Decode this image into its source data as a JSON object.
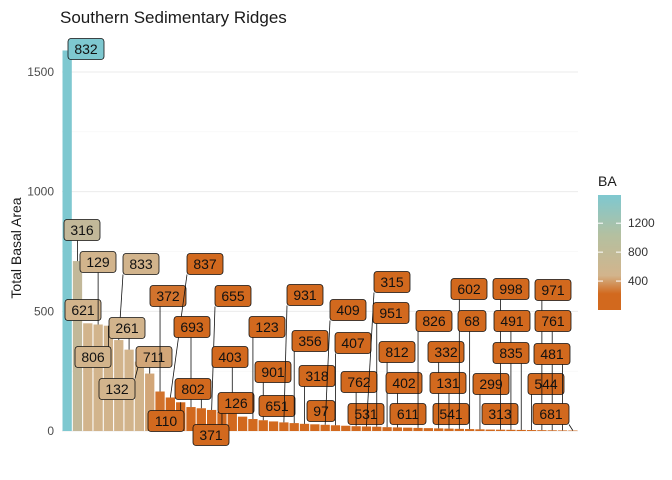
{
  "chart_data": {
    "type": "bar",
    "title": "Southern Sedimentary Ridges",
    "xlabel": "",
    "ylabel": "Total Basal Area",
    "ylim": [
      0,
      1600
    ],
    "yticks": [
      0,
      500,
      1000,
      1500
    ],
    "grid": true,
    "legend": {
      "title": "BA",
      "position": "right",
      "ticks": [
        400,
        800,
        1200
      ],
      "range": [
        0,
        1590
      ],
      "colors": {
        "low": "#d2691e",
        "mid": "#d2b48c",
        "high": "#7ec8d0"
      }
    },
    "categories": [
      "832",
      "316",
      "621",
      "129",
      "806",
      "833",
      "261",
      "132",
      "711",
      "372",
      "837",
      "110",
      "693",
      "802",
      "655",
      "371",
      "403",
      "126",
      "123",
      "901",
      "651",
      "931",
      "356",
      "318",
      "97",
      "409",
      "407",
      "531",
      "762",
      "315",
      "951",
      "812",
      "402",
      "611",
      "826",
      "541",
      "332",
      "131",
      "602",
      "68",
      "299",
      "313",
      "998",
      "491",
      "835",
      "544",
      "971",
      "761",
      "481",
      "681"
    ],
    "values": [
      1590,
      710,
      450,
      445,
      440,
      380,
      340,
      290,
      240,
      165,
      140,
      120,
      100,
      95,
      88,
      80,
      75,
      60,
      50,
      45,
      40,
      36,
      33,
      30,
      28,
      26,
      24,
      22,
      20,
      19,
      18,
      16,
      15,
      14,
      13,
      12,
      11,
      10,
      9,
      8,
      7,
      6,
      5.5,
      5,
      4.5,
      4,
      3.5,
      3,
      2.5,
      2
    ]
  }
}
